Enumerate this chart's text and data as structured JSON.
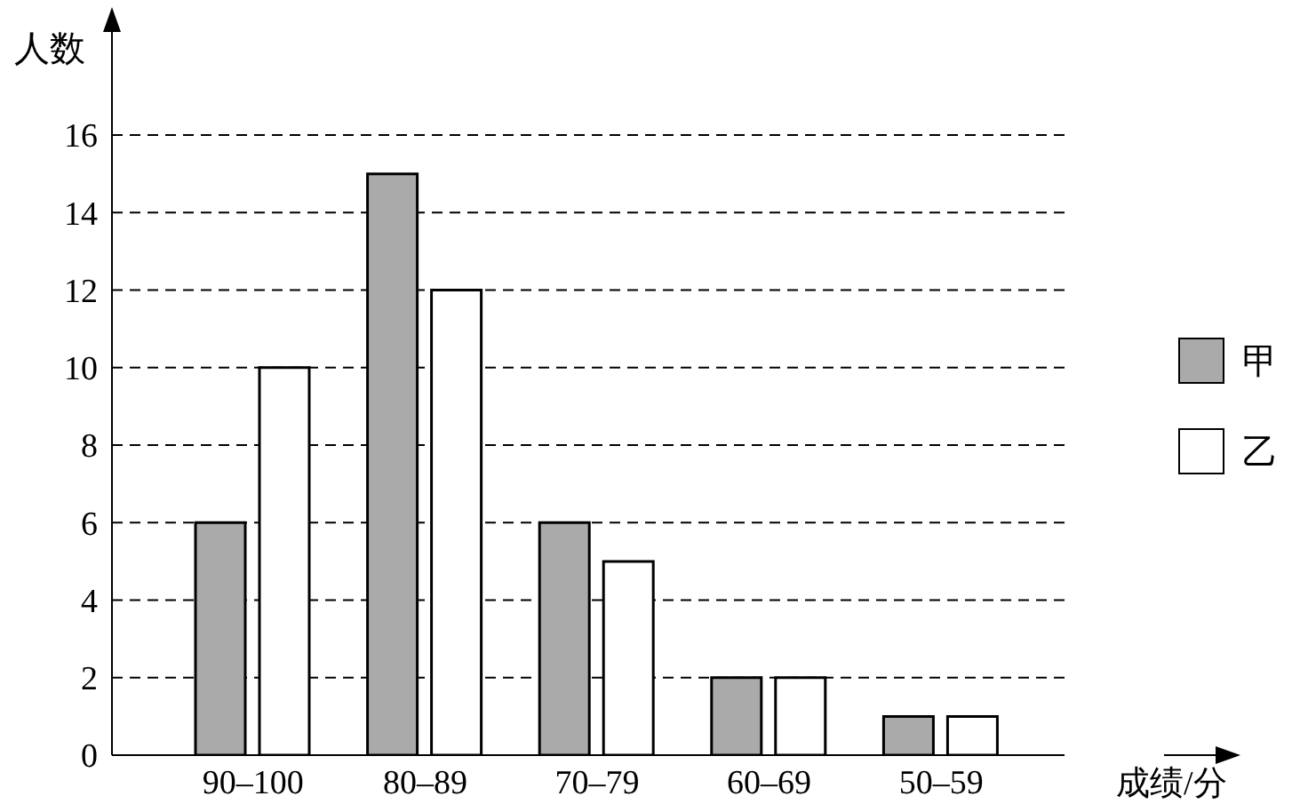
{
  "chart_data": {
    "type": "bar",
    "xlabel": "成绩/分",
    "ylabel": "人数",
    "categories": [
      "90–100",
      "80–89",
      "70–79",
      "60–69",
      "50–59"
    ],
    "series": [
      {
        "name": "甲",
        "color": "#aaaaaa",
        "values": [
          6,
          15,
          6,
          2,
          1
        ]
      },
      {
        "name": "乙",
        "color": "#ffffff",
        "values": [
          10,
          12,
          5,
          2,
          1
        ]
      }
    ],
    "ylim": [
      0,
      16
    ],
    "yticks": [
      0,
      2,
      4,
      6,
      8,
      10,
      12,
      14,
      16
    ],
    "grid": "y",
    "legend": "right"
  }
}
